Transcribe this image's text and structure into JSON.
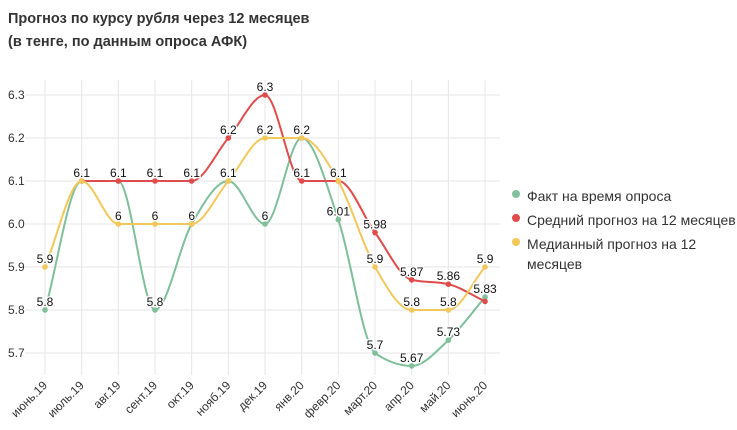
{
  "chart_data": {
    "type": "line",
    "title": "Прогноз по курсу рубля через 12 месяцев",
    "subtitle": "(в тенге, по данным опроса АФК)",
    "xlabel": "",
    "ylabel": "",
    "ylim": [
      5.7,
      6.3
    ],
    "yticks": [
      "5.7",
      "5.8",
      "5.9",
      "6.0",
      "6.1",
      "6.2",
      "6.3"
    ],
    "grid": true,
    "legend_position": "right",
    "categories": [
      "июнь.19",
      "июль.19",
      "авг.19",
      "сент.19",
      "окт.19",
      "нояб.19",
      "дек.19",
      "янв.20",
      "февр.20",
      "март.20",
      "апр.20",
      "май.20",
      "июнь.20"
    ],
    "series": [
      {
        "name": "Факт на время опроса",
        "color": "#7fbf9a",
        "values": [
          5.8,
          6.1,
          6.1,
          5.8,
          6.0,
          6.1,
          6.0,
          6.2,
          6.01,
          5.7,
          5.67,
          5.73,
          5.83
        ]
      },
      {
        "name": "Средний прогноз на 12 месяцев",
        "color": "#e04b4b",
        "values": [
          null,
          6.1,
          6.1,
          6.1,
          6.1,
          6.2,
          6.3,
          6.1,
          6.1,
          5.98,
          5.87,
          5.86,
          5.82
        ]
      },
      {
        "name": "Медианный прогноз на 12 месяцев",
        "color": "#f2c85b",
        "values": [
          5.9,
          6.1,
          6.0,
          6.0,
          6.0,
          6.1,
          6.2,
          6.2,
          6.1,
          5.9,
          5.8,
          5.8,
          5.9
        ]
      }
    ]
  }
}
